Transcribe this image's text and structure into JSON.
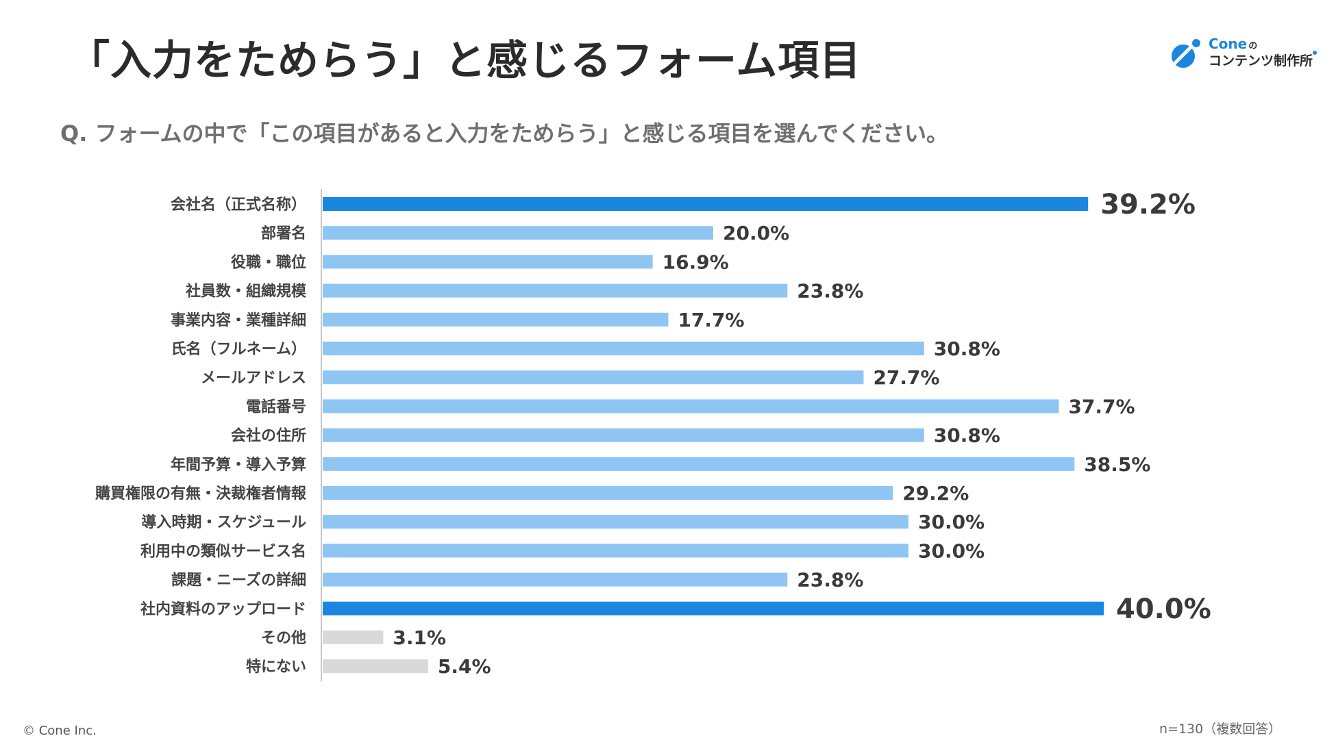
{
  "title": "「入力をためらう」と感じるフォーム項目",
  "question": "Q. フォームの中で「この項目があると入力をためらう」と感じる項目を選んでください。",
  "logo": {
    "line1": "Cone",
    "line1_suffix": "の",
    "line2": "コンテンツ制作所",
    "icon": "cone-logo-icon"
  },
  "copyright": "© Cone Inc.",
  "note": "n=130（複数回答）",
  "colors": {
    "highlight": "#1b86e0",
    "normal": "#8ec5f2",
    "other": "#d9d9d9",
    "axis": "#c8c8c8"
  },
  "chart_data": {
    "type": "bar",
    "orientation": "horizontal",
    "unit": "%",
    "xlim": [
      0,
      45
    ],
    "grid": false,
    "categories": [
      "会社名（正式名称）",
      "部署名",
      "役職・職位",
      "社員数・組織規模",
      "事業内容・業種詳細",
      "氏名（フルネーム）",
      "メールアドレス",
      "電話番号",
      "会社の住所",
      "年間予算・導入予算",
      "購買権限の有無・決裁権者情報",
      "導入時期・スケジュール",
      "利用中の類似サービス名",
      "課題・ニーズの詳細",
      "社内資料のアップロード",
      "その他",
      "特にない"
    ],
    "values": [
      39.2,
      20.0,
      16.9,
      23.8,
      17.7,
      30.8,
      27.7,
      37.7,
      30.8,
      38.5,
      29.2,
      30.0,
      30.0,
      23.8,
      40.0,
      3.1,
      5.4
    ],
    "value_labels": [
      "39.2%",
      "20.0%",
      "16.9%",
      "23.8%",
      "17.7%",
      "30.8%",
      "27.7%",
      "37.7%",
      "30.8%",
      "38.5%",
      "29.2%",
      "30.0%",
      "30.0%",
      "23.8%",
      "40.0%",
      "3.1%",
      "5.4%"
    ],
    "highlight": [
      0,
      14
    ],
    "muted": [
      15,
      16
    ]
  }
}
